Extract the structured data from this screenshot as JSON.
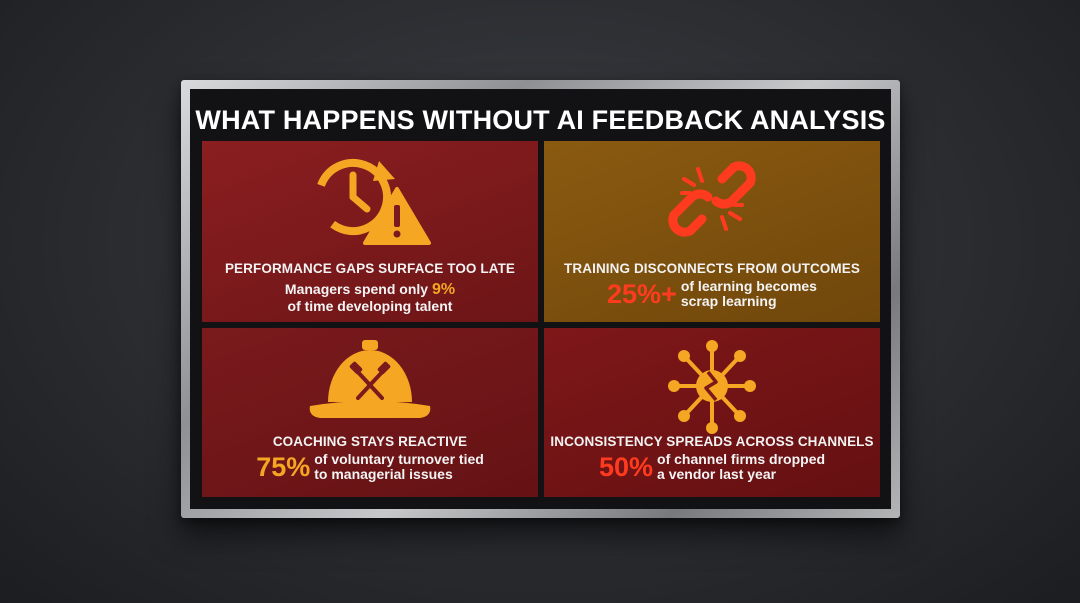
{
  "title": "WHAT HAPPENS WITHOUT AI FEEDBACK ANALYSIS",
  "panels": [
    {
      "icon": "clock-warning-icon",
      "heading": "PERFORMANCE GAPS SURFACE TOO LATE",
      "line1_prefix": "Managers spend only ",
      "stat": "9%",
      "line2": "of time developing talent"
    },
    {
      "icon": "broken-chain-icon",
      "heading": "TRAINING DISCONNECTS FROM OUTCOMES",
      "stat": "25%+",
      "line1": "of learning becomes",
      "line2": "scrap learning"
    },
    {
      "icon": "hard-hat-icon",
      "heading": "COACHING STAYS REACTIVE",
      "stat": "75%",
      "line1": "of voluntary turnover tied",
      "line2": "to managerial issues"
    },
    {
      "icon": "fractured-network-icon",
      "heading": "INCONSISTENCY SPREADS ACROSS CHANNELS",
      "stat": "50%",
      "line1": "of channel firms dropped",
      "line2": "a vendor last year"
    }
  ],
  "colors": {
    "accent_orange": "#f5a623",
    "accent_red": "#ff3b1f",
    "panel_red": "#7a1a1d",
    "panel_amber": "#7e520e"
  }
}
